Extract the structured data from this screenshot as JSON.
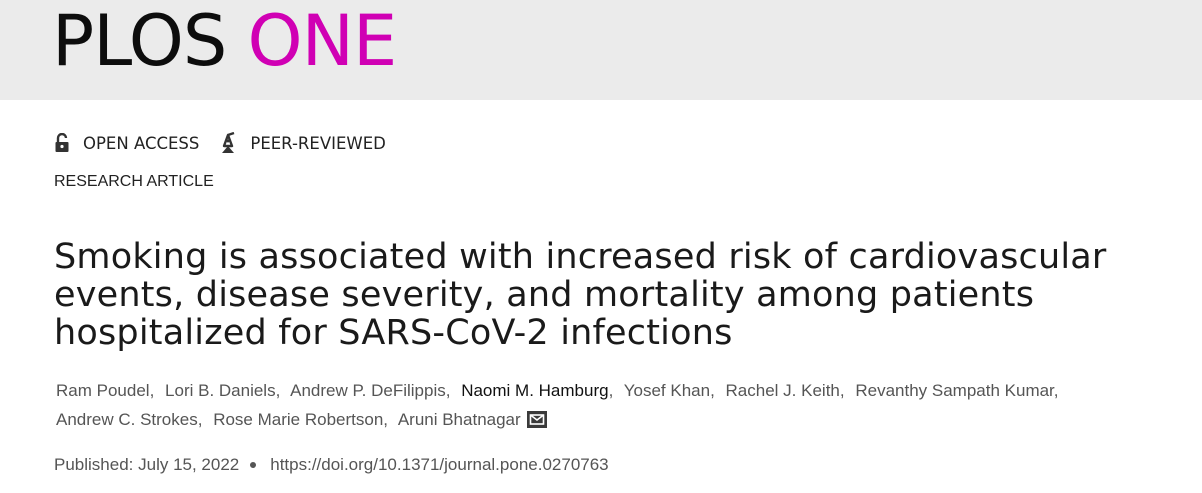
{
  "masthead": {
    "logo_part1": "PLOS",
    "logo_part2": "ONE",
    "logo_accent_color": "#d000b4"
  },
  "badges": [
    {
      "label": "OPEN ACCESS",
      "icon": "open-lock-icon"
    },
    {
      "label": "PEER-REVIEWED",
      "icon": "peer-reviewed-icon"
    }
  ],
  "article_type": "RESEARCH ARTICLE",
  "title": "Smoking is associated with increased risk of cardiovascular events, disease severity, and mortality among patients hospitalized for SARS-CoV-2 infections",
  "authors": [
    "Ram Poudel",
    "Lori B. Daniels",
    "Andrew P. DeFilippis",
    "Naomi M. Hamburg",
    "Yosef Khan",
    "Rachel J. Keith",
    "Revanthy Sampath Kumar",
    "Andrew C. Strokes",
    "Rose Marie Robertson",
    "Aruni Bhatnagar"
  ],
  "publication": {
    "published_label": "Published: July 15, 2022",
    "doi": "https://doi.org/10.1371/journal.pone.0270763"
  }
}
